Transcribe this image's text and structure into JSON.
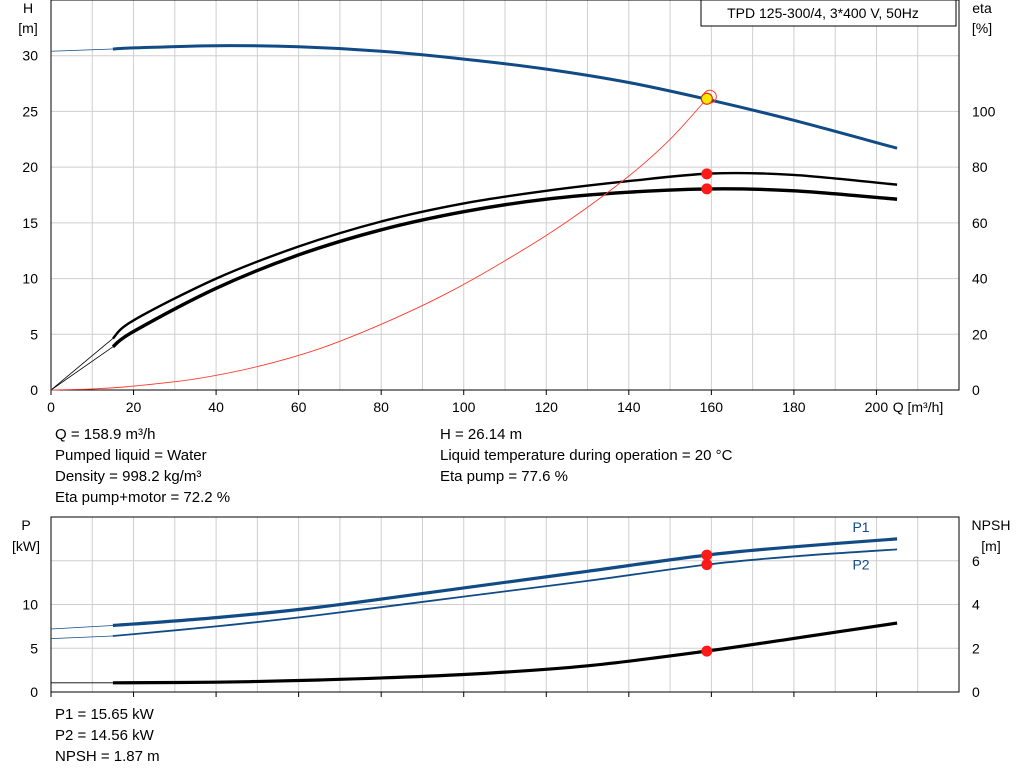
{
  "chart_data": [
    {
      "type": "line",
      "title": "TPD 125-300/4, 3*400 V, 50Hz",
      "xlabel": "Q [m³/h]",
      "ylabel_left": [
        "H",
        "[m]"
      ],
      "ylabel_right": [
        "eta",
        "[%]"
      ],
      "xlim": [
        0,
        220
      ],
      "ylim_left": [
        0,
        35
      ],
      "ylim_right": [
        0,
        140
      ],
      "x_ticks": [
        0,
        20,
        40,
        60,
        80,
        100,
        120,
        140,
        160,
        180,
        200
      ],
      "y_ticks_left": [
        0,
        5,
        10,
        15,
        20,
        25,
        30
      ],
      "y_ticks_right": [
        0,
        20,
        40,
        60,
        80,
        100
      ],
      "grid": true,
      "series": [
        {
          "axis": "left",
          "color": "#114b86",
          "x": [
            15,
            20,
            40,
            60,
            80,
            100,
            120,
            140,
            160,
            180,
            205
          ],
          "y": [
            30.6,
            30.7,
            30.9,
            30.8,
            30.4,
            29.7,
            28.8,
            27.6,
            26.0,
            24.2,
            21.7
          ]
        },
        {
          "axis": "right",
          "color": "#000000",
          "x": [
            15,
            20,
            40,
            60,
            80,
            100,
            120,
            140,
            160,
            180,
            205
          ],
          "y": [
            18.5,
            25,
            40,
            51.5,
            60.5,
            67,
            71.5,
            75,
            77.7,
            77.2,
            73.7
          ]
        },
        {
          "axis": "right",
          "color": "#000000",
          "x": [
            15,
            20,
            40,
            60,
            80,
            100,
            120,
            140,
            160,
            180,
            205
          ],
          "y": [
            15.5,
            21,
            36.5,
            48.5,
            57.5,
            64,
            68.5,
            71,
            72.2,
            71.5,
            68.5
          ]
        },
        {
          "axis": "left",
          "color": "#ff3b2f",
          "x": [
            0,
            10,
            20,
            35,
            50,
            65,
            80,
            95,
            110,
            125,
            140,
            150,
            158.9
          ],
          "y": [
            0,
            0.1,
            0.35,
            1,
            2.1,
            3.7,
            5.9,
            8.5,
            11.6,
            15.1,
            19.2,
            22.5,
            26.14
          ]
        }
      ],
      "operating_point": {
        "Q": 158.9,
        "H": 26.14,
        "eta_pump": 77.6,
        "eta_total": 72.2
      }
    },
    {
      "type": "line",
      "ylabel_left": [
        "P",
        "[kW]"
      ],
      "ylabel_right": [
        "NPSH",
        "[m]"
      ],
      "xlim": [
        0,
        220
      ],
      "ylim_left": [
        0,
        20
      ],
      "ylim_right": [
        0,
        8
      ],
      "y_ticks_left": [
        0,
        5,
        10
      ],
      "y_ticks_right": [
        0,
        2,
        4,
        6
      ],
      "grid": true,
      "series": [
        {
          "name": "P1",
          "axis": "left",
          "color": "#114b86",
          "x": [
            15,
            40,
            65,
            100,
            130,
            158.9,
            180,
            205
          ],
          "y": [
            7.6,
            8.5,
            9.7,
            11.9,
            13.8,
            15.65,
            16.6,
            17.5
          ]
        },
        {
          "name": "P2",
          "axis": "left",
          "color": "#114b86",
          "x": [
            15,
            40,
            65,
            100,
            130,
            158.9,
            180,
            205
          ],
          "y": [
            6.4,
            7.5,
            8.8,
            10.9,
            12.7,
            14.56,
            15.5,
            16.3
          ]
        },
        {
          "axis": "right",
          "color": "#000000",
          "x": [
            15,
            40,
            65,
            100,
            130,
            158.9,
            180,
            205
          ],
          "y": [
            0.42,
            0.45,
            0.55,
            0.8,
            1.2,
            1.87,
            2.45,
            3.15
          ]
        }
      ],
      "operating_point": {
        "P1": 15.65,
        "P2": 14.56,
        "NPSH": 1.87
      }
    }
  ],
  "info_upper": {
    "q": "Q = 158.9 m³/h",
    "liquid": "Pumped liquid = Water",
    "density": "Density = 998.2 kg/m³",
    "eta_total": "Eta pump+motor = 72.2 %",
    "h": "H = 26.14 m",
    "temp": "Liquid temperature during operation = 20 °C",
    "eta_pump": "Eta pump = 77.6 %"
  },
  "info_lower": {
    "p1": "P1 = 15.65 kW",
    "p2": "P2 = 14.56 kW",
    "npsh": "NPSH = 1.87 m"
  }
}
